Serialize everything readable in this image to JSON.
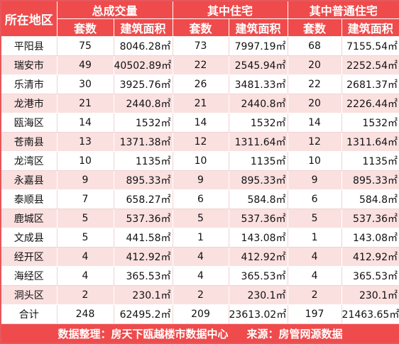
{
  "header": {
    "region": "所在地区",
    "groups": [
      "总成交量",
      "其中住宅",
      "其中普通住宅"
    ],
    "subcols": [
      "套数",
      "建筑面积",
      "套数",
      "建筑面积",
      "套数",
      "建筑面积"
    ]
  },
  "rows": [
    [
      "平阳县",
      "75",
      "8046.28㎡",
      "73",
      "7997.19㎡",
      "68",
      "7155.54㎡"
    ],
    [
      "瑞安市",
      "49",
      "40502.89㎡",
      "22",
      "2545.94㎡",
      "20",
      "2252.54㎡"
    ],
    [
      "乐清市",
      "30",
      "3925.76㎡",
      "26",
      "3481.33㎡",
      "22",
      "2681.37㎡"
    ],
    [
      "龙港市",
      "21",
      "2440.8㎡",
      "21",
      "2440.8㎡",
      "20",
      "2226.44㎡"
    ],
    [
      "瓯海区",
      "14",
      "1532㎡",
      "14",
      "1532㎡",
      "14",
      "1532㎡"
    ],
    [
      "苍南县",
      "13",
      "1371.38㎡",
      "12",
      "1311.64㎡",
      "12",
      "1311.64㎡"
    ],
    [
      "龙湾区",
      "10",
      "1135㎡",
      "10",
      "1135㎡",
      "10",
      "1135㎡"
    ],
    [
      "永嘉县",
      "9",
      "895.33㎡",
      "9",
      "895.33㎡",
      "9",
      "895.33㎡"
    ],
    [
      "泰顺县",
      "7",
      "658.27㎡",
      "6",
      "584.8㎡",
      "6",
      "584.8㎡"
    ],
    [
      "鹿城区",
      "5",
      "537.36㎡",
      "5",
      "537.36㎡",
      "5",
      "537.36㎡"
    ],
    [
      "文成县",
      "5",
      "441.58㎡",
      "1",
      "143.08㎡",
      "1",
      "143.08㎡"
    ],
    [
      "经开区",
      "4",
      "412.92㎡",
      "4",
      "412.92㎡",
      "4",
      "412.92㎡"
    ],
    [
      "海经区",
      "4",
      "365.53㎡",
      "4",
      "365.53㎡",
      "4",
      "365.53㎡"
    ],
    [
      "洞头区",
      "2",
      "230.1㎡",
      "2",
      "230.1㎡",
      "2",
      "230.1㎡"
    ]
  ],
  "total": [
    "合计",
    "248",
    "62495.2㎡",
    "209",
    "23613.02㎡",
    "197",
    "21463.65㎡"
  ],
  "footer": {
    "data_arrange": "数据整理：房天下瓯越楼市数据中心",
    "source": "来源：房管网源数据"
  },
  "colors": {
    "header_bg": "#ef4b4c",
    "stripe_bg": "#fbe0e0"
  }
}
